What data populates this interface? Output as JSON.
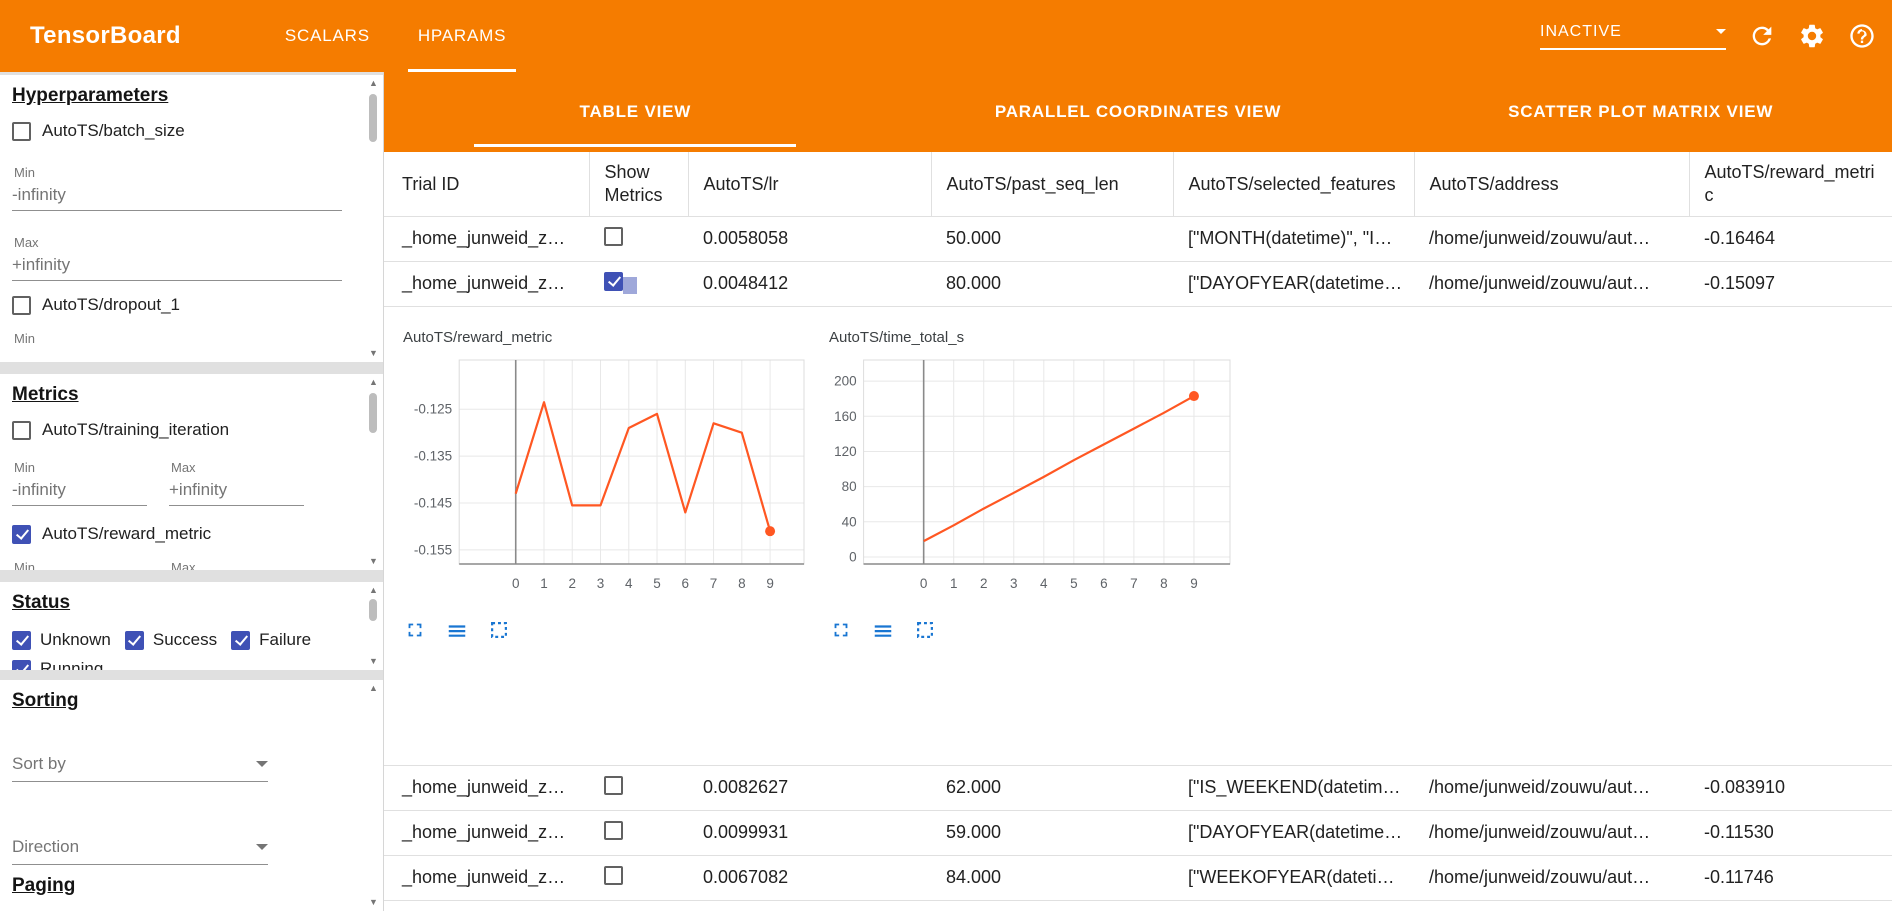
{
  "colors": {
    "header_orange": "#f57c00",
    "checkbox_indigo": "#3f51b5",
    "chart_line": "#ff5722",
    "tool_icon_blue": "#1976d2"
  },
  "header": {
    "title": "TensorBoard",
    "nav": [
      {
        "label": "SCALARS",
        "active": false
      },
      {
        "label": "HPARAMS",
        "active": true
      }
    ],
    "status_select": {
      "value": "INACTIVE"
    }
  },
  "sidebar": {
    "hyperparameters": {
      "title": "Hyperparameters",
      "batch_size": {
        "label": "AutoTS/batch_size",
        "checked": false,
        "min_label": "Min",
        "min_value": "-infinity",
        "max_label": "Max",
        "max_value": "+infinity"
      },
      "dropout_1": {
        "label": "AutoTS/dropout_1",
        "checked": false,
        "min_label": "Min"
      }
    },
    "metrics": {
      "title": "Metrics",
      "training_iteration": {
        "label": "AutoTS/training_iteration",
        "checked": false,
        "min_label": "Min",
        "max_label": "Max",
        "min_value": "-infinity",
        "max_value": "+infinity"
      },
      "reward_metric": {
        "label": "AutoTS/reward_metric",
        "checked": true,
        "min_label": "Min",
        "max_label": "Max"
      }
    },
    "status": {
      "title": "Status",
      "options": [
        {
          "label": "Unknown",
          "checked": true
        },
        {
          "label": "Success",
          "checked": true
        },
        {
          "label": "Failure",
          "checked": true
        },
        {
          "label": "Running",
          "checked": true
        }
      ]
    },
    "sorting": {
      "title": "Sorting",
      "sort_by_placeholder": "Sort by",
      "direction_placeholder": "Direction"
    },
    "paging": {
      "title": "Paging"
    }
  },
  "main": {
    "view_tabs": [
      {
        "label": "TABLE VIEW",
        "active": true
      },
      {
        "label": "PARALLEL COORDINATES VIEW",
        "active": false
      },
      {
        "label": "SCATTER PLOT MATRIX VIEW",
        "active": false
      }
    ],
    "table": {
      "columns": [
        "Trial ID",
        "Show Metrics",
        "AutoTS/lr",
        "AutoTS/past_seq_len",
        "AutoTS/selected_features",
        "AutoTS/address",
        "AutoTS/reward_metric"
      ],
      "rows": [
        {
          "trial_id": "_home_junweid_z…",
          "show_metrics": false,
          "lr": "0.0058058",
          "past_seq_len": "50.000",
          "selected_features": "[\"MONTH(datetime)\", \"I…",
          "address": "/home/junweid/zouwu/aut…",
          "reward_metric": "-0.16464",
          "expanded": false
        },
        {
          "trial_id": "_home_junweid_z…",
          "show_metrics": true,
          "lr": "0.0048412",
          "past_seq_len": "80.000",
          "selected_features": "[\"DAYOFYEAR(datetime…",
          "address": "/home/junweid/zouwu/aut…",
          "reward_metric": "-0.15097",
          "expanded": true
        },
        {
          "trial_id": "_home_junweid_z…",
          "show_metrics": false,
          "lr": "0.0082627",
          "past_seq_len": "62.000",
          "selected_features": "[\"IS_WEEKEND(datetim…",
          "address": "/home/junweid/zouwu/aut…",
          "reward_metric": "-0.083910",
          "expanded": false
        },
        {
          "trial_id": "_home_junweid_z…",
          "show_metrics": false,
          "lr": "0.0099931",
          "past_seq_len": "59.000",
          "selected_features": "[\"DAYOFYEAR(datetime…",
          "address": "/home/junweid/zouwu/aut…",
          "reward_metric": "-0.11530",
          "expanded": false
        },
        {
          "trial_id": "_home_junweid_z…",
          "show_metrics": false,
          "lr": "0.0067082",
          "past_seq_len": "84.000",
          "selected_features": "[\"WEEKOFYEAR(dateti…",
          "address": "/home/junweid/zouwu/aut…",
          "reward_metric": "-0.11746",
          "expanded": false
        }
      ]
    }
  },
  "chart_data": [
    {
      "type": "line",
      "title": "AutoTS/reward_metric",
      "x": [
        0,
        1,
        2,
        3,
        4,
        5,
        6,
        7,
        8,
        9
      ],
      "values": [
        -0.143,
        -0.1235,
        -0.1455,
        -0.1455,
        -0.129,
        -0.126,
        -0.147,
        -0.128,
        -0.13,
        -0.151
      ],
      "xtick_labels": [
        "0",
        "1",
        "2",
        "3",
        "4",
        "5",
        "6",
        "7",
        "8",
        "9"
      ],
      "yticks": [
        -0.125,
        -0.135,
        -0.145,
        -0.155
      ],
      "ytick_labels": [
        "-0.125",
        "-0.135",
        "-0.145",
        "-0.155"
      ],
      "xlim": [
        -2,
        10.2
      ],
      "ylim": [
        -0.158,
        -0.1145
      ],
      "line_color": "#ff5722",
      "grid": true,
      "endpoint_marker": true,
      "legend": "none"
    },
    {
      "type": "line",
      "title": "AutoTS/time_total_s",
      "x": [
        0,
        1,
        2,
        3,
        4,
        5,
        6,
        7,
        8,
        9
      ],
      "values": [
        18,
        36,
        55,
        73,
        91,
        110,
        128,
        146,
        164,
        183
      ],
      "xtick_labels": [
        "0",
        "1",
        "2",
        "3",
        "4",
        "5",
        "6",
        "7",
        "8",
        "9"
      ],
      "yticks": [
        0,
        40,
        80,
        120,
        160,
        200
      ],
      "ytick_labels": [
        "0",
        "40",
        "80",
        "120",
        "160",
        "200"
      ],
      "xlim": [
        -2,
        10.2
      ],
      "ylim": [
        -8,
        224
      ],
      "line_color": "#ff5722",
      "grid": true,
      "endpoint_marker": true,
      "legend": "none"
    }
  ]
}
